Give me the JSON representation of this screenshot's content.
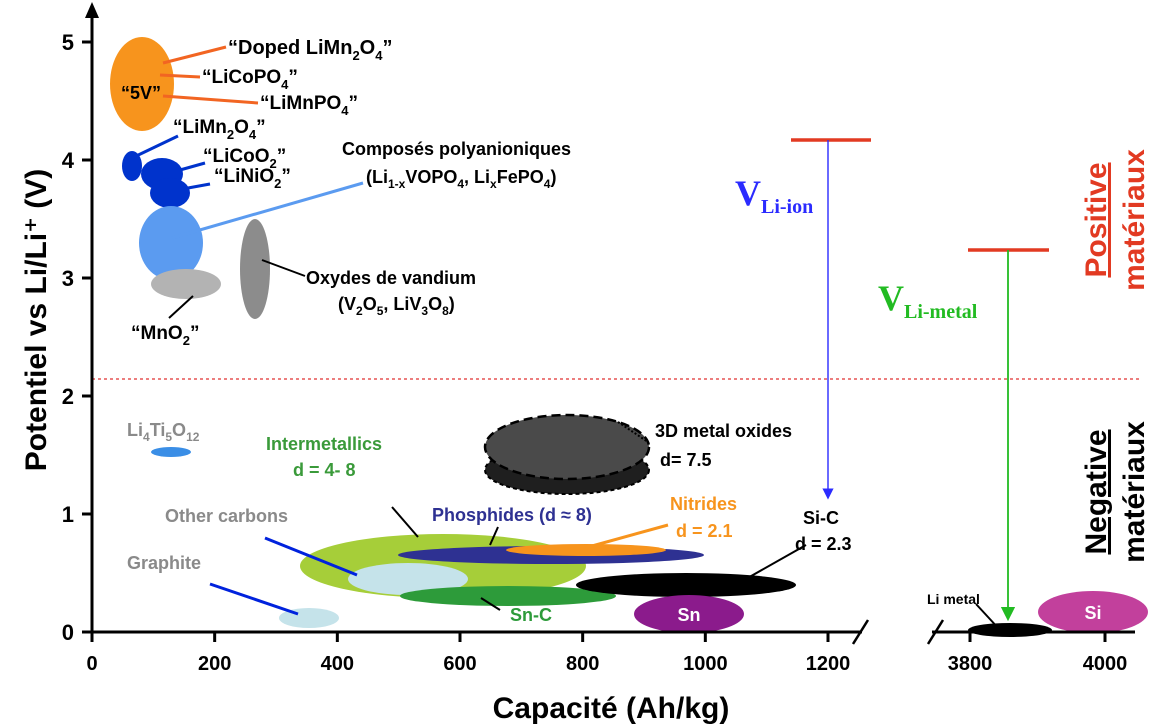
{
  "chart_data": {
    "type": "scatter",
    "ylabel": "Potentiel vs Li/Li⁺ (V)",
    "xlabel": "Capacité (Ah/kg)",
    "x_ticks": [
      "0",
      "200",
      "400",
      "600",
      "800",
      "1000",
      "1200",
      "3800",
      "4000"
    ],
    "y_ticks": [
      "0",
      "1",
      "2",
      "3",
      "4",
      "5"
    ],
    "xlim_left": [
      0,
      1200
    ],
    "xlim_right": [
      3800,
      4000
    ],
    "ylim": [
      0,
      5
    ],
    "axis_break": true,
    "separator_potential": 2.15,
    "regions": [
      {
        "id": "5v",
        "label": "“5V”",
        "cx": 80,
        "cy": 4.65,
        "color": "#f7941d"
      },
      {
        "id": "limn2o4-small",
        "cx": 60,
        "cy": 3.98,
        "color": "#0033cc"
      },
      {
        "id": "licoo2",
        "cx": 110,
        "cy": 3.9,
        "color": "#0033cc"
      },
      {
        "id": "linio2",
        "cx": 120,
        "cy": 3.73,
        "color": "#0033cc"
      },
      {
        "id": "polyanionic",
        "cx": 125,
        "cy": 3.3,
        "color": "#5b9bf0"
      },
      {
        "id": "mno2",
        "cx": 145,
        "cy": 2.95,
        "color": "#b3b3b3"
      },
      {
        "id": "vanadium",
        "cx": 250,
        "cy": 3.0,
        "color": "#8c8c8c"
      },
      {
        "id": "li4ti5o12",
        "cx": 120,
        "cy": 1.55,
        "color": "#3a8ee6"
      },
      {
        "id": "intermetallics",
        "cx": 600,
        "cy": 0.57,
        "color": "#a6ce39"
      },
      {
        "id": "other-carbons",
        "cx": 480,
        "cy": 0.45,
        "color": "#c5e3ea"
      },
      {
        "id": "graphite",
        "cx": 350,
        "cy": 0.12,
        "color": "#c5e3ea"
      },
      {
        "id": "phosphides",
        "cx": 760,
        "cy": 0.67,
        "color": "#2e3192"
      },
      {
        "id": "nitrides",
        "cx": 790,
        "cy": 0.72,
        "color": "#f7941d"
      },
      {
        "id": "sn-c",
        "cx": 650,
        "cy": 0.32,
        "color": "#2d9b3a"
      },
      {
        "id": "si-c",
        "cx": 920,
        "cy": 0.41,
        "color": "#000000"
      },
      {
        "id": "sn",
        "cx": 990,
        "cy": 0.15,
        "color": "#8b1b8c"
      },
      {
        "id": "3d-metal-oxides",
        "cx": 730,
        "cy": 1.55,
        "color": "#3a3a3a"
      },
      {
        "id": "li-metal",
        "cx": 3860,
        "cy": 0.02,
        "color": "#000000"
      },
      {
        "id": "si",
        "cx": 3980,
        "cy": 0.2,
        "color": "#c2409c"
      }
    ],
    "voltage_windows": [
      {
        "label": "V",
        "sub": "Li-ion",
        "top": 4.18,
        "bottom": 1.1,
        "color": "#2b2bff"
      },
      {
        "label": "V",
        "sub": "Li-metal",
        "top": 3.25,
        "bottom": 0.1,
        "color": "#22bb22"
      }
    ]
  },
  "labels": {
    "doped_limn2o4": {
      "pre": "“Doped LiMn",
      "s1": "2",
      "mid": "O",
      "s2": "4",
      "post": "”"
    },
    "licopo4": {
      "pre": "“LiCoPO",
      "s1": "4",
      "post": "”"
    },
    "limnpo4": {
      "pre": "“LiMnPO",
      "s1": "4",
      "post": "”"
    },
    "five_v": "“5V”",
    "limn2o4": {
      "pre": "“LiMn",
      "s1": "2",
      "mid": "O",
      "s2": "4",
      "post": "”"
    },
    "licoo2": {
      "pre": "“LiCoO",
      "s1": "2",
      "post": "”"
    },
    "linio2": {
      "pre": "“LiNiO",
      "s1": "2",
      "post": "”"
    },
    "polyanion_title": "Composés polyanioniques",
    "polyanion_formula": {
      "a": "(Li",
      "a_sub": "1-x",
      "b": "VOPO",
      "b_sub": "4",
      "c": ", Li",
      "c_sub": "x",
      "d": "FePO",
      "d_sub": "4",
      "e": ")"
    },
    "vanadium_title": "Oxydes de vandium",
    "vanadium_formula": {
      "a": "(V",
      "a_sub": "2",
      "b": "O",
      "b_sub": "5",
      "c": ", LiV",
      "c_sub": "3",
      "d": "O",
      "d_sub": "8",
      "e": ")"
    },
    "mno2": {
      "pre": "“MnO",
      "s1": "2",
      "post": "”"
    },
    "li4ti5o12": {
      "a": "Li",
      "a_sub": "4",
      "b": "Ti",
      "b_sub": "5",
      "c": "O",
      "c_sub": "12"
    },
    "intermetallics_1": "Intermetallics",
    "intermetallics_2": "d = 4- 8",
    "metal_oxides_1": "3D metal oxides",
    "metal_oxides_2": "d= 7.5",
    "other_carbons": "Other carbons",
    "phosphides": "Phosphides (d ≈ 8)",
    "nitrides_1": "Nitrides",
    "nitrides_2": "d = 2.1",
    "sic_1": "Si-C",
    "sic_2": "d = 2.3",
    "graphite": "Graphite",
    "snc": "Sn-C",
    "sn": "Sn",
    "li_metal": "Li metal",
    "si": "Si",
    "v_li_ion": "V",
    "v_li_ion_sub": "Li-ion",
    "v_li_metal": "V",
    "v_li_metal_sub": "Li-metal",
    "positive_1": "Positive",
    "positive_2": "matériaux",
    "negative_1": "Negative",
    "negative_2": "matériaux"
  }
}
